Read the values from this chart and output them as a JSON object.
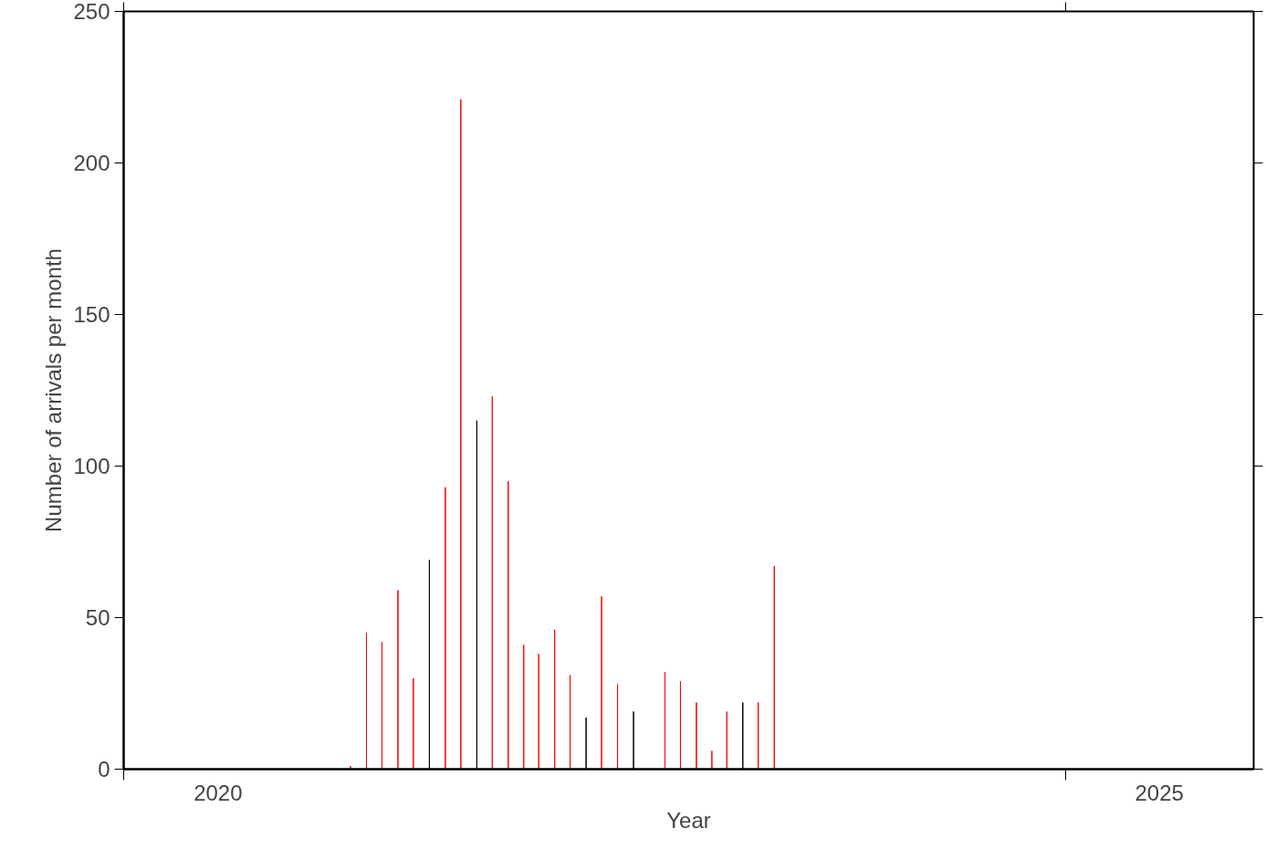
{
  "chart_data": {
    "type": "bar",
    "xlabel": "Year",
    "ylabel": "Number of arrivals per month",
    "x": [
      "2021-03-16",
      "2021-04-16",
      "2021-05-16",
      "2021-06-16",
      "2021-07-16",
      "2021-08-16",
      "2021-09-16",
      "2021-10-16",
      "2021-11-16",
      "2021-12-16",
      "2022-01-16",
      "2022-02-15",
      "2022-03-16",
      "2022-04-16",
      "2022-05-16",
      "2022-06-16",
      "2022-07-16",
      "2022-08-16",
      "2022-09-16",
      "2022-10-16",
      "2022-11-16",
      "2022-12-16",
      "2023-01-16",
      "2023-02-15",
      "2023-03-16",
      "2023-04-16",
      "2023-05-16",
      "2023-06-16"
    ],
    "values": [
      1,
      45,
      42,
      59,
      30,
      69,
      93,
      221,
      115,
      123,
      95,
      41,
      38,
      46,
      31,
      17,
      57,
      28,
      19,
      0,
      32,
      29,
      22,
      6,
      19,
      22,
      22,
      67
    ],
    "colors": [
      "#ff0000",
      "#ff0000",
      "#ff0000",
      "#ff0000",
      "#ff0000",
      "#000000",
      "#ff0000",
      "#ff0000",
      "#000000",
      "#ff0000",
      "#ff0000",
      "#ff0000",
      "#ff0000",
      "#ff0000",
      "#ff0000",
      "#000000",
      "#ff0000",
      "#ff0000",
      "#000000",
      "#ff0000",
      "#ff0000",
      "#ff0000",
      "#ff0000",
      "#ff0000",
      "#ff0000",
      "#000000",
      "#ff0000",
      "#ff0000"
    ],
    "xlim": [
      "2020",
      "2026"
    ],
    "xticks": [
      {
        "value": "2020",
        "label": null
      },
      {
        "value": "2020-07-02",
        "label": "2020"
      },
      {
        "value": "2025",
        "label": null
      },
      {
        "value": "2025-07-02",
        "label": "2025"
      }
    ],
    "ylim": [
      0,
      250
    ],
    "yticks": [
      0,
      50,
      100,
      150,
      200,
      250
    ],
    "grid": false
  }
}
